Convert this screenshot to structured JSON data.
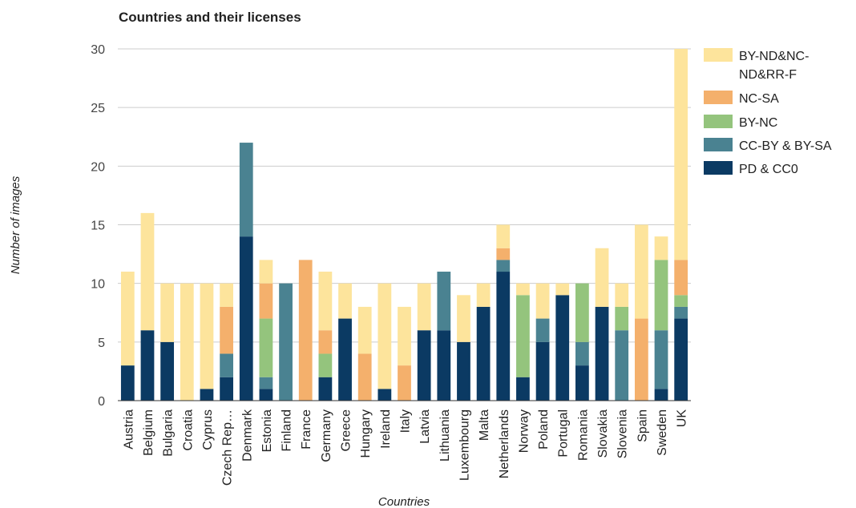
{
  "chart_data": {
    "type": "bar",
    "stacked": true,
    "title": "Countries and their licenses",
    "xlabel": "Countries",
    "ylabel": "Number of images",
    "ylim": [
      0,
      30
    ],
    "yticks": [
      0,
      5,
      10,
      15,
      20,
      25,
      30
    ],
    "grid": true,
    "legend_position": "right",
    "categories": [
      "Austria",
      "Belgium",
      "Bulgaria",
      "Croatia",
      "Cyprus",
      "Czech Rep…",
      "Denmark",
      "Estonia",
      "Finland",
      "France",
      "Germany",
      "Greece",
      "Hungary",
      "Ireland",
      "Italy",
      "Latvia",
      "Lithuania",
      "Luxembourg",
      "Malta",
      "Netherlands",
      "Norway",
      "Poland",
      "Portugal",
      "Romania",
      "Slovakia",
      "Slovenia",
      "Spain",
      "Sweden",
      "UK"
    ],
    "series": [
      {
        "name": "PD & CC0",
        "color": "#0b3a63",
        "values": [
          3,
          6,
          5,
          0,
          1,
          2,
          14,
          1,
          0,
          0,
          2,
          7,
          0,
          1,
          0,
          6,
          6,
          5,
          8,
          11,
          2,
          5,
          9,
          3,
          8,
          0,
          0,
          1,
          7
        ]
      },
      {
        "name": "CC-BY & BY-SA",
        "color": "#4a8291",
        "values": [
          0,
          0,
          0,
          0,
          0,
          2,
          8,
          1,
          10,
          0,
          0,
          0,
          0,
          0,
          0,
          0,
          5,
          0,
          0,
          1,
          0,
          2,
          0,
          2,
          0,
          6,
          0,
          5,
          1
        ]
      },
      {
        "name": "BY-NC",
        "color": "#94c47d",
        "values": [
          0,
          0,
          0,
          0,
          0,
          0,
          0,
          5,
          0,
          0,
          2,
          0,
          0,
          0,
          0,
          0,
          0,
          0,
          0,
          0,
          7,
          0,
          0,
          5,
          0,
          2,
          0,
          6,
          1
        ]
      },
      {
        "name": "NC-SA",
        "color": "#f4b06c",
        "values": [
          0,
          0,
          0,
          0,
          0,
          4,
          0,
          3,
          0,
          12,
          2,
          0,
          4,
          0,
          3,
          0,
          0,
          0,
          0,
          1,
          0,
          0,
          0,
          0,
          0,
          0,
          7,
          0,
          3
        ]
      },
      {
        "name": "BY-ND&NC-ND&RR-F",
        "color": "#fde49c",
        "values": [
          8,
          10,
          5,
          10,
          9,
          2,
          0,
          2,
          0,
          0,
          5,
          3,
          4,
          9,
          5,
          4,
          0,
          4,
          2,
          2,
          1,
          3,
          1,
          0,
          5,
          2,
          8,
          2,
          18
        ]
      }
    ],
    "legend": [
      {
        "lines": [
          "BY-ND&NC-",
          "ND&RR-F"
        ],
        "color": "#fde49c"
      },
      {
        "lines": [
          "NC-SA"
        ],
        "color": "#f4b06c"
      },
      {
        "lines": [
          "BY-NC"
        ],
        "color": "#94c47d"
      },
      {
        "lines": [
          "CC-BY & BY-SA"
        ],
        "color": "#4a8291"
      },
      {
        "lines": [
          "PD & CC0"
        ],
        "color": "#0b3a63"
      }
    ]
  }
}
